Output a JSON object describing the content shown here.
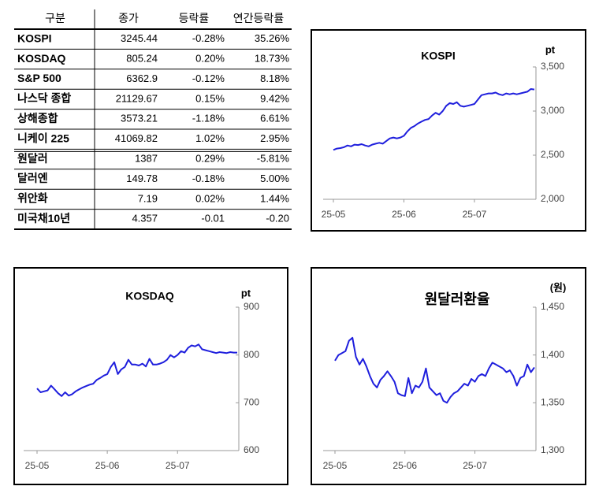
{
  "table": {
    "header": [
      "구분",
      "종가",
      "등락률",
      "연간등락률"
    ],
    "rows": [
      [
        "KOSPI",
        "3245.44",
        "-0.28%",
        "35.26%"
      ],
      [
        "KOSDAQ",
        "805.24",
        "0.20%",
        "18.73%"
      ],
      [
        "S&P 500",
        "6362.9",
        "-0.12%",
        "8.18%"
      ],
      [
        "나스닥 종합",
        "21129.67",
        "0.15%",
        "9.42%"
      ],
      [
        "상해종합",
        "3573.21",
        "-1.18%",
        "6.61%"
      ],
      [
        "니케이 225",
        "41069.82",
        "1.02%",
        "2.95%"
      ],
      [
        "원달러",
        "1387",
        "0.29%",
        "-5.81%"
      ],
      [
        "달러엔",
        "149.78",
        "-0.18%",
        "5.00%"
      ],
      [
        "위안화",
        "7.19",
        "0.02%",
        "1.44%"
      ],
      [
        "미국채10년",
        "4.357",
        "-0.01",
        "-0.20"
      ]
    ]
  },
  "chart_data": [
    {
      "type": "line",
      "title": "KOSPI",
      "y_label": "pt",
      "color": "#1f1fdd",
      "categories": [
        "25-05",
        null,
        null,
        null,
        null,
        null,
        null,
        null,
        null,
        null,
        null,
        null,
        null,
        null,
        null,
        null,
        null,
        null,
        null,
        null,
        "25-06",
        null,
        null,
        null,
        null,
        null,
        null,
        null,
        null,
        null,
        null,
        null,
        null,
        null,
        null,
        null,
        null,
        null,
        null,
        null,
        "25-07",
        null,
        null,
        null,
        null,
        null,
        null,
        null,
        null,
        null,
        null,
        null,
        null,
        null,
        null,
        null,
        null,
        null
      ],
      "values": [
        2560,
        2575,
        2580,
        2590,
        2610,
        2600,
        2620,
        2615,
        2625,
        2610,
        2600,
        2620,
        2630,
        2640,
        2630,
        2660,
        2690,
        2700,
        2690,
        2700,
        2720,
        2770,
        2810,
        2830,
        2860,
        2880,
        2900,
        2910,
        2950,
        2980,
        2960,
        3000,
        3060,
        3090,
        3080,
        3100,
        3060,
        3050,
        3060,
        3070,
        3080,
        3130,
        3180,
        3190,
        3200,
        3200,
        3210,
        3190,
        3180,
        3200,
        3190,
        3200,
        3190,
        3200,
        3210,
        3220,
        3250,
        3245
      ],
      "ylim": [
        2000,
        3500
      ],
      "yticks": [
        {
          "value": 2000,
          "label": "2,000"
        },
        {
          "value": 2500,
          "label": "2,500"
        },
        {
          "value": 3000,
          "label": "3,000"
        },
        {
          "value": 3500,
          "label": "3,500"
        }
      ]
    },
    {
      "type": "line",
      "title": "KOSDAQ",
      "y_label": "pt",
      "color": "#1f1fdd",
      "categories": [
        "25-05",
        null,
        null,
        null,
        null,
        null,
        null,
        null,
        null,
        null,
        null,
        null,
        null,
        null,
        null,
        null,
        null,
        null,
        null,
        null,
        "25-06",
        null,
        null,
        null,
        null,
        null,
        null,
        null,
        null,
        null,
        null,
        null,
        null,
        null,
        null,
        null,
        null,
        null,
        null,
        null,
        "25-07",
        null,
        null,
        null,
        null,
        null,
        null,
        null,
        null,
        null,
        null,
        null,
        null,
        null,
        null,
        null,
        null,
        null
      ],
      "values": [
        730,
        722,
        724,
        726,
        736,
        728,
        720,
        714,
        722,
        715,
        718,
        724,
        728,
        732,
        735,
        738,
        740,
        748,
        752,
        757,
        760,
        775,
        785,
        760,
        770,
        775,
        790,
        780,
        780,
        778,
        782,
        776,
        792,
        780,
        780,
        782,
        785,
        790,
        800,
        795,
        800,
        808,
        805,
        815,
        820,
        818,
        822,
        812,
        810,
        808,
        806,
        804,
        806,
        805,
        804,
        806,
        805,
        805
      ],
      "ylim": [
        600,
        900
      ],
      "yticks": [
        600,
        700,
        800,
        900
      ]
    },
    {
      "type": "line",
      "title": "원달러환율",
      "y_label": "(원)",
      "color": "#1f1fdd",
      "categories": [
        "25-05",
        null,
        null,
        null,
        null,
        null,
        null,
        null,
        null,
        null,
        null,
        null,
        null,
        null,
        null,
        null,
        null,
        null,
        null,
        null,
        "25-06",
        null,
        null,
        null,
        null,
        null,
        null,
        null,
        null,
        null,
        null,
        null,
        null,
        null,
        null,
        null,
        null,
        null,
        null,
        null,
        "25-07",
        null,
        null,
        null,
        null,
        null,
        null,
        null,
        null,
        null,
        null,
        null,
        null,
        null,
        null,
        null,
        null,
        null
      ],
      "values": [
        1394,
        1400,
        1402,
        1404,
        1415,
        1418,
        1398,
        1390,
        1396,
        1388,
        1378,
        1370,
        1366,
        1374,
        1378,
        1383,
        1378,
        1372,
        1360,
        1358,
        1357,
        1376,
        1360,
        1368,
        1366,
        1372,
        1386,
        1366,
        1362,
        1358,
        1360,
        1352,
        1350,
        1356,
        1360,
        1362,
        1366,
        1370,
        1368,
        1375,
        1372,
        1378,
        1380,
        1378,
        1386,
        1392,
        1390,
        1388,
        1386,
        1382,
        1384,
        1378,
        1368,
        1376,
        1378,
        1390,
        1382,
        1387
      ],
      "ylim": [
        1300,
        1450
      ],
      "yticks": [
        {
          "value": 1300,
          "label": "1,300"
        },
        {
          "value": 1350,
          "label": "1,350"
        },
        {
          "value": 1400,
          "label": "1,400"
        },
        {
          "value": 1450,
          "label": "1,450"
        }
      ]
    }
  ]
}
